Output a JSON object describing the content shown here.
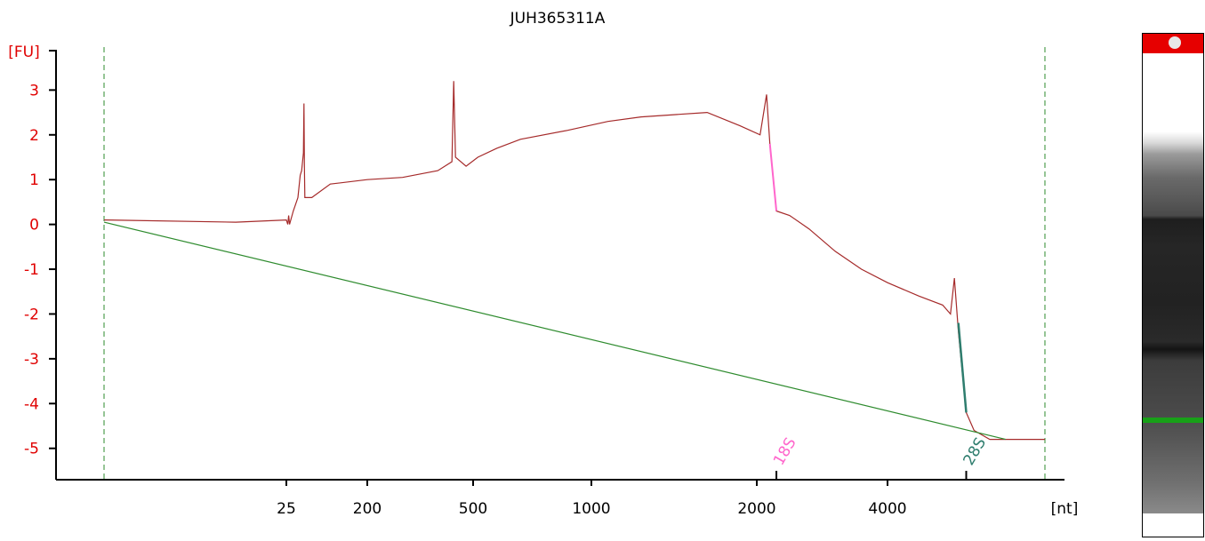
{
  "chart_data": {
    "type": "line",
    "title": "JUH365311A",
    "ylabel": "[FU]",
    "xlabel": "[nt]",
    "ylim": [
      -5.7,
      3.9
    ],
    "yticks": [
      "3",
      "2",
      "1",
      "0",
      "-1",
      "-2",
      "-3",
      "-4",
      "-5"
    ],
    "ytick_values": [
      3,
      2,
      1,
      0,
      -1,
      -2,
      -3,
      -4,
      -5
    ],
    "xticks": [
      "25",
      "200",
      "500",
      "1000",
      "2000",
      "4000"
    ],
    "xtick_values": [
      25,
      200,
      500,
      1000,
      2000,
      4000
    ],
    "markers": [
      {
        "label": "18S",
        "color": "#ff66cc",
        "x": 2300
      },
      {
        "label": "28S",
        "color": "#2e7d6e",
        "x": 5000
      }
    ],
    "series": [
      {
        "color": "#a52a2a",
        "points": [
          [
            7,
            0.1
          ],
          [
            20,
            0.05
          ],
          [
            25,
            0.1
          ],
          [
            28,
            0.0
          ],
          [
            30,
            0.2
          ],
          [
            32,
            0.0
          ],
          [
            40,
            0.3
          ],
          [
            50,
            0.6
          ],
          [
            55,
            1.1
          ],
          [
            58,
            1.2
          ],
          [
            62,
            1.6
          ],
          [
            63,
            2.7
          ],
          [
            64,
            1.3
          ],
          [
            65,
            0.6
          ],
          [
            80,
            0.6
          ],
          [
            120,
            0.9
          ],
          [
            200,
            1.0
          ],
          [
            300,
            1.05
          ],
          [
            400,
            1.2
          ],
          [
            440,
            1.4
          ],
          [
            445,
            3.2
          ],
          [
            450,
            1.5
          ],
          [
            480,
            1.3
          ],
          [
            520,
            1.5
          ],
          [
            600,
            1.7
          ],
          [
            700,
            1.9
          ],
          [
            900,
            2.1
          ],
          [
            1100,
            2.3
          ],
          [
            1300,
            2.4
          ],
          [
            1500,
            2.45
          ],
          [
            1700,
            2.5
          ],
          [
            1900,
            2.2
          ],
          [
            2050,
            2.0
          ],
          [
            2150,
            2.9
          ],
          [
            2200,
            1.8
          ],
          [
            2300,
            0.3
          ],
          [
            2500,
            0.2
          ],
          [
            2800,
            -0.1
          ],
          [
            3200,
            -0.6
          ],
          [
            3600,
            -1.0
          ],
          [
            4000,
            -1.3
          ],
          [
            4400,
            -1.6
          ],
          [
            4700,
            -1.8
          ],
          [
            4800,
            -2.0
          ],
          [
            4850,
            -1.2
          ],
          [
            4900,
            -2.4
          ],
          [
            5000,
            -4.2
          ],
          [
            5100,
            -4.6
          ],
          [
            5300,
            -4.8
          ],
          [
            6000,
            -4.8
          ]
        ]
      },
      {
        "color": "#2e8b2e",
        "points": [
          [
            7,
            0.05
          ],
          [
            5500,
            -4.8
          ]
        ]
      }
    ],
    "grid": false
  }
}
